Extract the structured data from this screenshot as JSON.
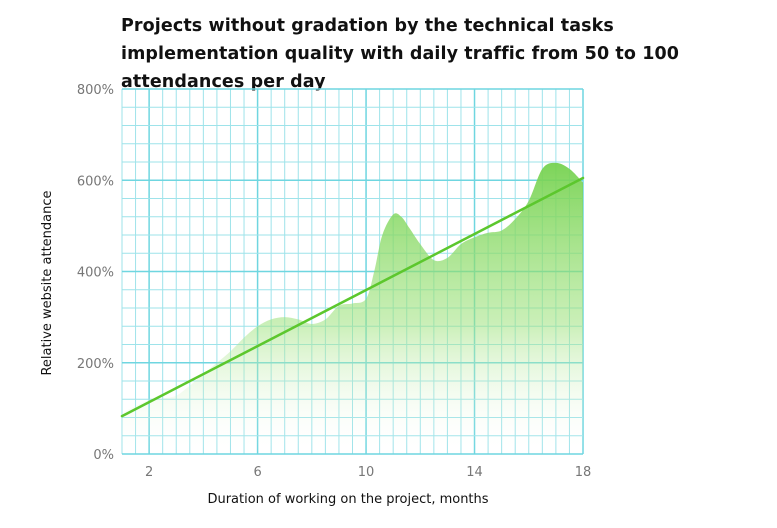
{
  "chart_data": {
    "type": "area",
    "title": "Projects without gradation by the technical tasks implementation quality with daily traffic from 50 to 100 attendances per day",
    "xlabel": "Duration of working on the project, months",
    "ylabel": "Relative website attendance",
    "xlim": [
      1,
      18
    ],
    "ylim": [
      0,
      800
    ],
    "x_ticks": [
      2,
      6,
      10,
      14,
      18
    ],
    "y_ticks": [
      0,
      200,
      400,
      600,
      800
    ],
    "y_tick_labels": [
      "0%",
      "200%",
      "400%",
      "600%",
      "800%"
    ],
    "grid": true,
    "series": [
      {
        "kind": "area",
        "x": [
          1,
          1.5,
          2,
          2.5,
          3,
          3.5,
          4,
          4.5,
          5,
          5.5,
          6,
          6.5,
          7,
          7.5,
          8,
          8.5,
          9,
          9.5,
          10,
          10.3,
          10.6,
          11,
          11.3,
          11.6,
          12,
          12.5,
          13,
          13.5,
          14,
          14.5,
          15,
          15.5,
          16,
          16.5,
          17,
          17.5,
          18
        ],
        "y": [
          90,
          105,
          118,
          122,
          128,
          150,
          175,
          200,
          225,
          255,
          280,
          295,
          300,
          295,
          285,
          295,
          325,
          330,
          340,
          400,
          480,
          525,
          520,
          495,
          460,
          425,
          430,
          460,
          475,
          485,
          490,
          515,
          555,
          625,
          638,
          625,
          595
        ]
      },
      {
        "kind": "trend",
        "x": [
          1,
          18
        ],
        "y": [
          83,
          605
        ]
      }
    ],
    "colors": {
      "area": "#7fd65c",
      "trend": "#5cc72d",
      "grid": "#9ee3ea",
      "grid_major": "#6fd6e0"
    }
  }
}
